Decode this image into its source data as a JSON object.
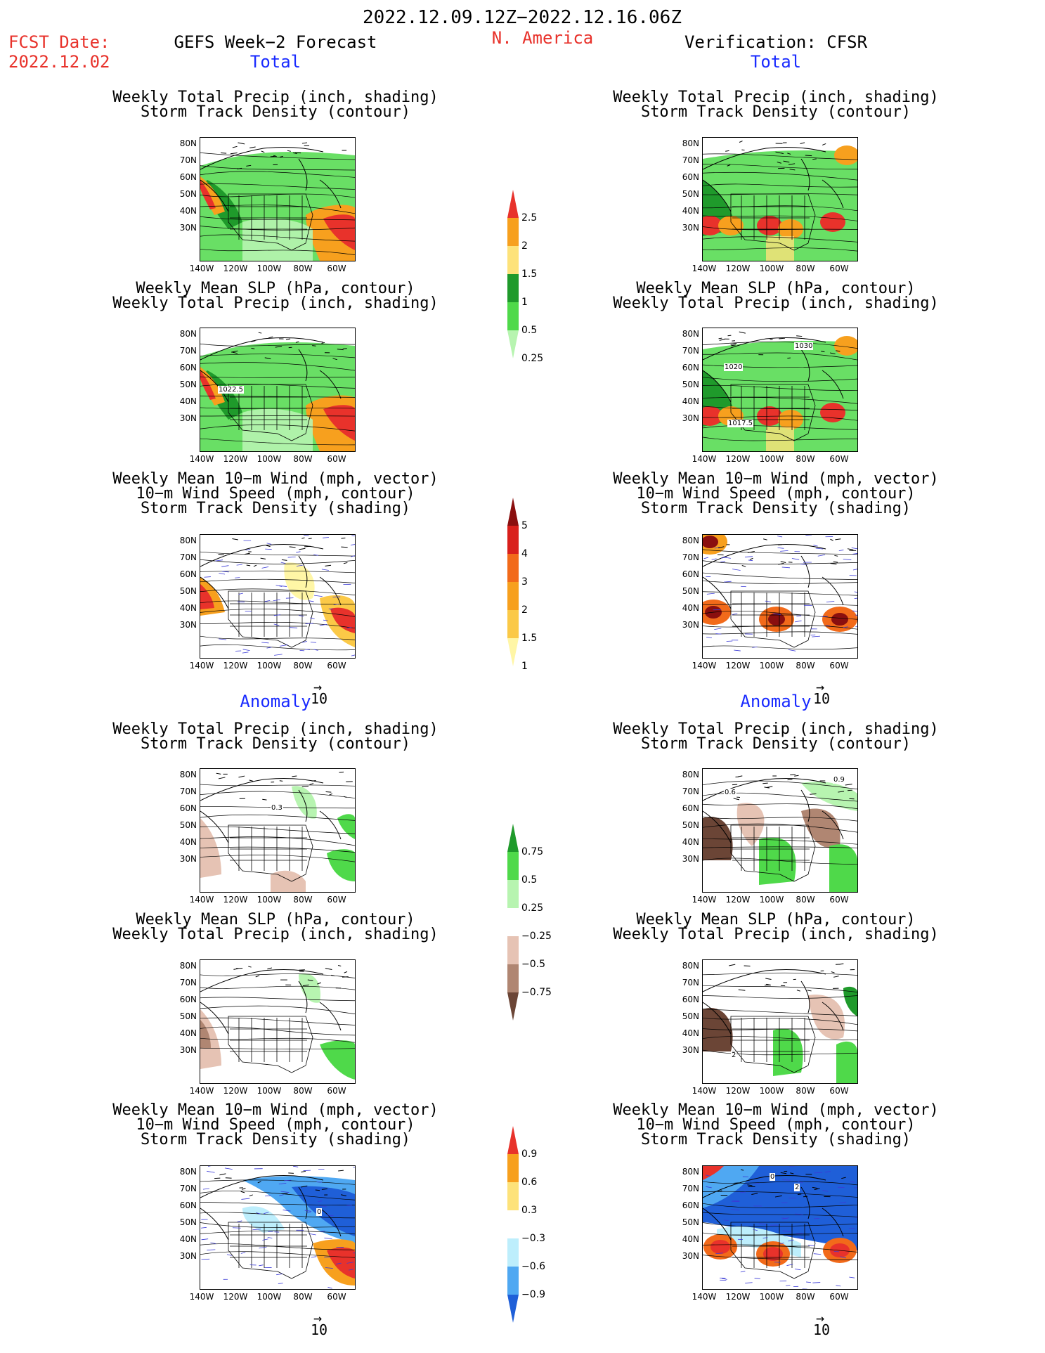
{
  "header": {
    "date_range": "2022.12.09.12Z−2022.12.16.06Z",
    "fcst_label": "FCST Date:",
    "fcst_date": "2022.12.02",
    "left_title": "GEFS Week−2 Forecast",
    "region": "N. America",
    "right_title": "Verification: CFSR"
  },
  "sections": {
    "total": "Total",
    "anomaly": "Anomaly"
  },
  "panel_titles": {
    "precip_track": [
      "Weekly Total Precip (inch, shading)",
      "Storm Track Density (contour)"
    ],
    "slp_precip": [
      "Weekly Mean SLP (hPa, contour)",
      "Weekly Total Precip (inch, shading)"
    ],
    "wind_track": [
      "Weekly Mean 10−m Wind (mph, vector)",
      "10−m Wind Speed (mph, contour)",
      "Storm Track Density (shading)"
    ]
  },
  "axes": {
    "lat_ticks": [
      "80N",
      "70N",
      "60N",
      "50N",
      "40N",
      "30N"
    ],
    "lon_ticks": [
      "140W",
      "120W",
      "100W",
      "80W",
      "60W"
    ]
  },
  "vector_ref": "10",
  "contour_labels": {
    "fc_slp": "1022.5",
    "vf_slp_a": "1030",
    "vf_slp_b": "1020",
    "vf_slp_c": "1017.5",
    "fc_track_anom": "0.3",
    "vf_track_anom_a": "0.6",
    "vf_track_anom_b": "0.9",
    "vf_slp_anom": "2",
    "fc_wind_anom": "0",
    "vf_wind_anom_a": "0",
    "vf_wind_anom_b": "2"
  },
  "colorbars": {
    "precip_total": {
      "labels": [
        "2.5",
        "2",
        "1.5",
        "1",
        "0.5",
        "0.25"
      ],
      "colors": [
        "#e8322b",
        "#f7a01e",
        "#fde27a",
        "#1f9a2b",
        "#4fd94a",
        "#b7f4b0"
      ]
    },
    "track_total": {
      "labels": [
        "5",
        "4",
        "3",
        "2",
        "1.5",
        "1"
      ],
      "colors": [
        "#8a0f0f",
        "#d9201c",
        "#f26a1a",
        "#f7a01e",
        "#fbc947",
        "#fff6a6"
      ]
    },
    "precip_anom": {
      "labels": [
        "0.75",
        "0.5",
        "0.25",
        "−0.25",
        "−0.5",
        "−0.75"
      ],
      "colors": [
        "#1f9a2b",
        "#4fd94a",
        "#b7f4b0",
        "#ffffff",
        "#e6c3b4",
        "#b08672",
        "#6b4536"
      ]
    },
    "track_anom": {
      "labels": [
        "0.9",
        "0.6",
        "0.3",
        "−0.3",
        "−0.6",
        "−0.9"
      ],
      "colors": [
        "#e8322b",
        "#f7a01e",
        "#fde27a",
        "#ffffff",
        "#bdeefc",
        "#4fa8f2",
        "#1f5fd8"
      ]
    }
  }
}
